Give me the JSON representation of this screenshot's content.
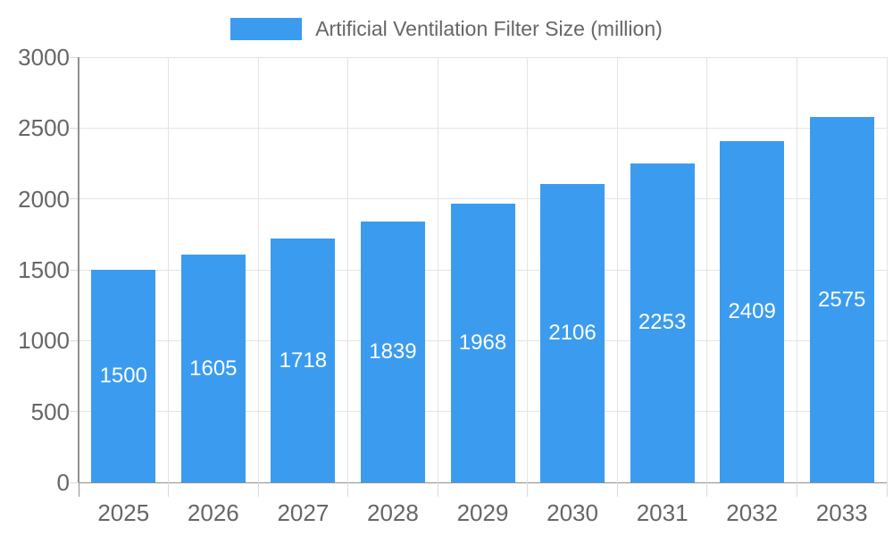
{
  "legend": {
    "label": "Artificial Ventilation Filter Size (million)"
  },
  "chart_data": {
    "type": "bar",
    "title": "Artificial Ventilation Filter Size (million)",
    "categories": [
      "2025",
      "2026",
      "2027",
      "2028",
      "2029",
      "2030",
      "2031",
      "2032",
      "2033"
    ],
    "values": [
      1500,
      1605,
      1718,
      1839,
      1968,
      2106,
      2253,
      2409,
      2575
    ],
    "xlabel": "",
    "ylabel": "",
    "ylim": [
      0,
      3000
    ],
    "ytick_step": 500,
    "ytick_labels": [
      "0",
      "500",
      "1000",
      "1500",
      "2000",
      "2500",
      "3000"
    ],
    "value_labels_shown": true,
    "value_label_position": "center",
    "legend_position": "top",
    "grid": true
  },
  "colors": {
    "bar": "#3B9CEF",
    "grid": "#E3E3E3",
    "axis_line": "#8F8F8F",
    "tick": "#DADADA",
    "axis_text": "#666666",
    "legend_text": "#666666",
    "value_label": "#FFFFFF",
    "background": "#FFFFFF"
  }
}
